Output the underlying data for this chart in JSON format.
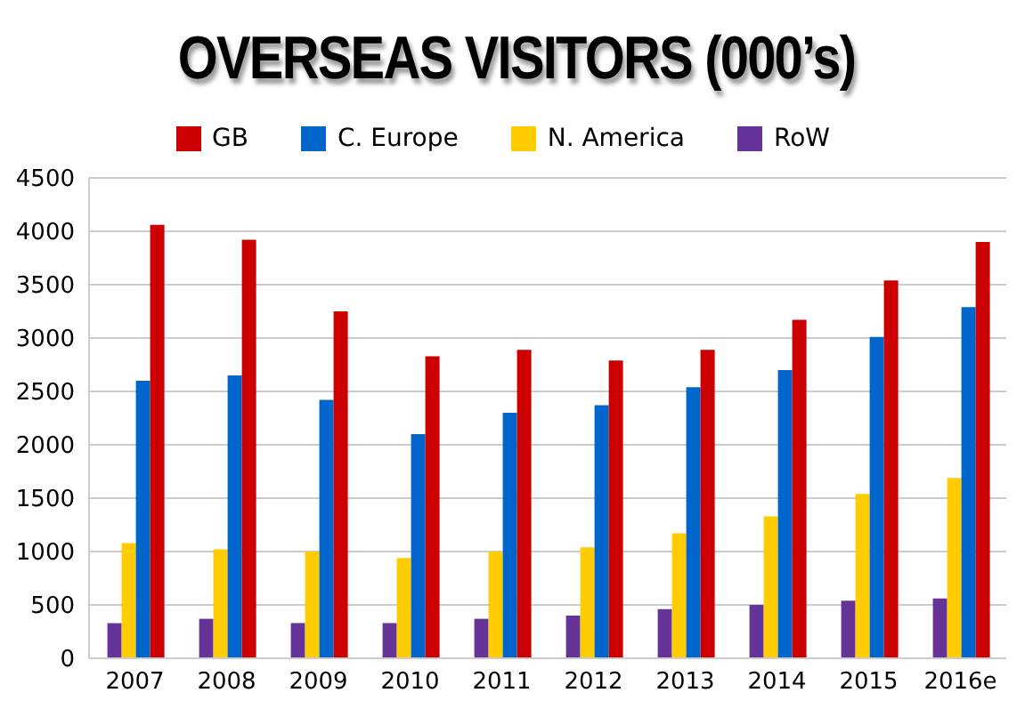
{
  "chart_data": {
    "type": "bar",
    "title": "OVERSEAS VISITORS (000’s)",
    "categories": [
      "2007",
      "2008",
      "2009",
      "2010",
      "2011",
      "2012",
      "2013",
      "2014",
      "2015",
      "2016e"
    ],
    "series": [
      {
        "name": "RoW",
        "color": "#663399",
        "values": [
          330,
          370,
          330,
          330,
          370,
          400,
          460,
          500,
          540,
          560
        ]
      },
      {
        "name": "N. America",
        "color": "#ffcc00",
        "values": [
          1080,
          1020,
          1000,
          940,
          1000,
          1040,
          1170,
          1330,
          1540,
          1690
        ]
      },
      {
        "name": "C. Europe",
        "color": "#0066cc",
        "values": [
          2600,
          2650,
          2420,
          2100,
          2300,
          2370,
          2540,
          2700,
          3010,
          3290
        ]
      },
      {
        "name": "GB",
        "color": "#cc0000",
        "values": [
          4060,
          3920,
          3250,
          2830,
          2890,
          2790,
          2890,
          3170,
          3540,
          3900
        ]
      }
    ],
    "ylim": [
      0,
      4500
    ],
    "yticks": [
      0,
      500,
      1000,
      1500,
      2000,
      2500,
      3000,
      3500,
      4000,
      4500
    ],
    "grid": "y",
    "legend": "top"
  }
}
